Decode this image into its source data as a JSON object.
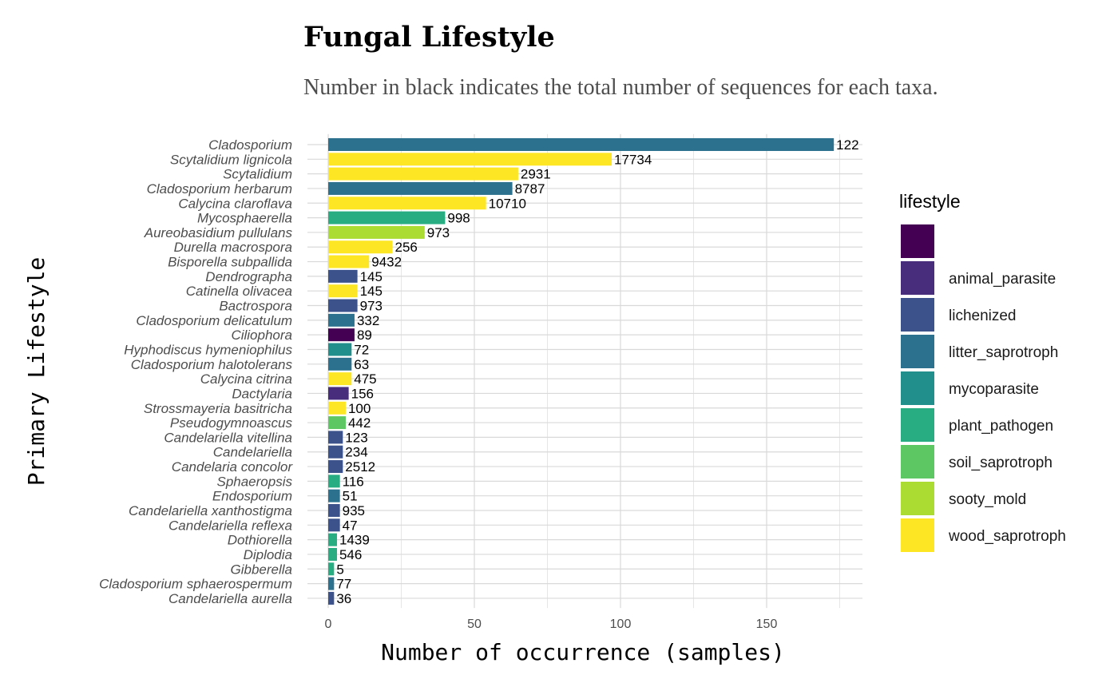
{
  "chart_data": {
    "type": "bar",
    "orientation": "horizontal",
    "title": "Fungal Lifestyle",
    "subtitle": "Number in black indicates the total number of sequences for each taxa.",
    "xlabel": "Number of occurrence (samples)",
    "ylabel": "Primary Lifestyle",
    "xlim": [
      0,
      180
    ],
    "xticks": [
      0,
      50,
      100,
      150
    ],
    "grid": true,
    "legend": {
      "title": "lifestyle",
      "placement": "right",
      "entries": [
        {
          "label": "",
          "color": "#440154"
        },
        {
          "label": "animal_parasite",
          "color": "#472D7B"
        },
        {
          "label": "lichenized",
          "color": "#3B528B"
        },
        {
          "label": "litter_saprotroph",
          "color": "#2C728E"
        },
        {
          "label": "mycoparasite",
          "color": "#21908C"
        },
        {
          "label": "plant_pathogen",
          "color": "#27AD81"
        },
        {
          "label": "soil_saprotroph",
          "color": "#5DC863"
        },
        {
          "label": "sooty_mold",
          "color": "#AADC32"
        },
        {
          "label": "wood_saprotroph",
          "color": "#FDE725"
        }
      ]
    },
    "bars": [
      {
        "taxon": "Cladosporium",
        "value": 173,
        "lifestyle": "litter_saprotroph",
        "label": "122"
      },
      {
        "taxon": "Scytalidium lignicola",
        "value": 97,
        "lifestyle": "wood_saprotroph",
        "label": "17734"
      },
      {
        "taxon": "Scytalidium",
        "value": 65,
        "lifestyle": "wood_saprotroph",
        "label": "2931"
      },
      {
        "taxon": "Cladosporium herbarum",
        "value": 63,
        "lifestyle": "litter_saprotroph",
        "label": "8787"
      },
      {
        "taxon": "Calycina claroflava",
        "value": 54,
        "lifestyle": "wood_saprotroph",
        "label": "10710"
      },
      {
        "taxon": "Mycosphaerella",
        "value": 40,
        "lifestyle": "plant_pathogen",
        "label": "998"
      },
      {
        "taxon": "Aureobasidium pullulans",
        "value": 33,
        "lifestyle": "sooty_mold",
        "label": "973"
      },
      {
        "taxon": "Durella macrospora",
        "value": 22,
        "lifestyle": "wood_saprotroph",
        "label": "256"
      },
      {
        "taxon": "Bisporella subpallida",
        "value": 14,
        "lifestyle": "wood_saprotroph",
        "label": "9432"
      },
      {
        "taxon": "Dendrographa",
        "value": 10,
        "lifestyle": "lichenized",
        "label": "145"
      },
      {
        "taxon": "Catinella olivacea",
        "value": 10,
        "lifestyle": "wood_saprotroph",
        "label": "145"
      },
      {
        "taxon": "Bactrospora",
        "value": 10,
        "lifestyle": "lichenized",
        "label": "973"
      },
      {
        "taxon": "Cladosporium delicatulum",
        "value": 9,
        "lifestyle": "litter_saprotroph",
        "label": "332"
      },
      {
        "taxon": "Ciliophora",
        "value": 9,
        "lifestyle": "",
        "label": "89"
      },
      {
        "taxon": "Hyphodiscus hymeniophilus",
        "value": 8,
        "lifestyle": "mycoparasite",
        "label": "72"
      },
      {
        "taxon": "Cladosporium halotolerans",
        "value": 8,
        "lifestyle": "litter_saprotroph",
        "label": "63"
      },
      {
        "taxon": "Calycina citrina",
        "value": 8,
        "lifestyle": "wood_saprotroph",
        "label": "475"
      },
      {
        "taxon": "Dactylaria",
        "value": 7,
        "lifestyle": "animal_parasite",
        "label": "156"
      },
      {
        "taxon": "Strossmayeria basitricha",
        "value": 6,
        "lifestyle": "wood_saprotroph",
        "label": "100"
      },
      {
        "taxon": "Pseudogymnoascus",
        "value": 6,
        "lifestyle": "soil_saprotroph",
        "label": "442"
      },
      {
        "taxon": "Candelariella vitellina",
        "value": 5,
        "lifestyle": "lichenized",
        "label": "123"
      },
      {
        "taxon": "Candelariella",
        "value": 5,
        "lifestyle": "lichenized",
        "label": "234"
      },
      {
        "taxon": "Candelaria concolor",
        "value": 5,
        "lifestyle": "lichenized",
        "label": "2512"
      },
      {
        "taxon": "Sphaeropsis",
        "value": 4,
        "lifestyle": "plant_pathogen",
        "label": "116"
      },
      {
        "taxon": "Endosporium",
        "value": 4,
        "lifestyle": "litter_saprotroph",
        "label": "51"
      },
      {
        "taxon": "Candelariella xanthostigma",
        "value": 4,
        "lifestyle": "lichenized",
        "label": "935"
      },
      {
        "taxon": "Candelariella reflexa",
        "value": 4,
        "lifestyle": "lichenized",
        "label": "47"
      },
      {
        "taxon": "Dothiorella",
        "value": 3,
        "lifestyle": "plant_pathogen",
        "label": "1439"
      },
      {
        "taxon": "Diplodia",
        "value": 3,
        "lifestyle": "plant_pathogen",
        "label": "546"
      },
      {
        "taxon": "Gibberella",
        "value": 2,
        "lifestyle": "plant_pathogen",
        "label": "5"
      },
      {
        "taxon": "Cladosporium sphaerospermum",
        "value": 2,
        "lifestyle": "litter_saprotroph",
        "label": "77"
      },
      {
        "taxon": "Candelariella aurella",
        "value": 2,
        "lifestyle": "lichenized",
        "label": "36"
      }
    ]
  }
}
